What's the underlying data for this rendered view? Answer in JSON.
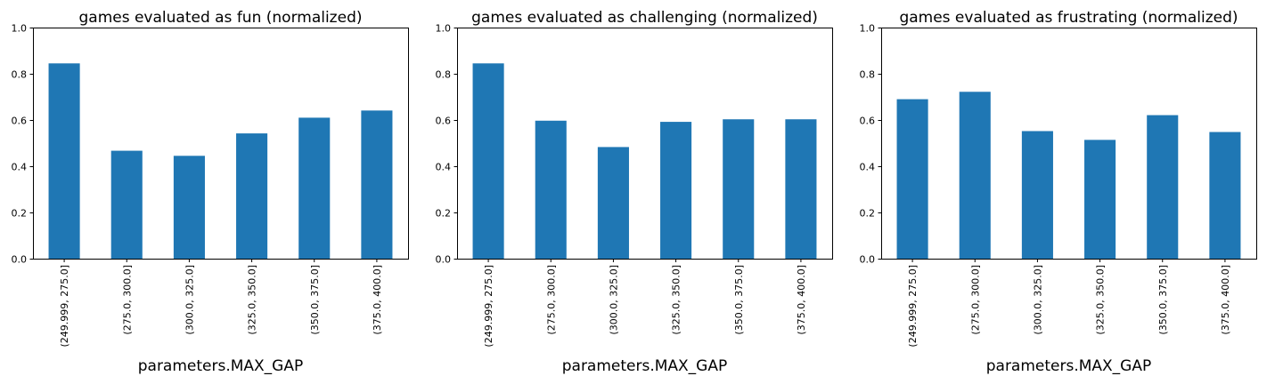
{
  "chart_data": [
    {
      "type": "bar",
      "title": "games evaluated as fun (normalized)",
      "xlabel": "parameters.MAX_GAP",
      "ylabel": "",
      "categories": [
        "(249.999, 275.0]",
        "(275.0, 300.0]",
        "(300.0, 325.0]",
        "(325.0, 350.0]",
        "(350.0, 375.0]",
        "(375.0, 400.0]"
      ],
      "values": [
        0.845,
        0.467,
        0.445,
        0.542,
        0.61,
        0.641
      ],
      "ylim": [
        0,
        1
      ],
      "yticks": [
        "0.0",
        "0.2",
        "0.4",
        "0.6",
        "0.8",
        "1.0"
      ],
      "color": "#1f77b4",
      "grid": false,
      "legend": "none"
    },
    {
      "type": "bar",
      "title": "games evaluated as challenging (normalized)",
      "xlabel": "parameters.MAX_GAP",
      "ylabel": "",
      "categories": [
        "(249.999, 275.0]",
        "(275.0, 300.0]",
        "(300.0, 325.0]",
        "(325.0, 350.0]",
        "(350.0, 375.0]",
        "(375.0, 400.0]"
      ],
      "values": [
        0.845,
        0.597,
        0.483,
        0.592,
        0.603,
        0.603
      ],
      "ylim": [
        0,
        1
      ],
      "yticks": [
        "0.0",
        "0.2",
        "0.4",
        "0.6",
        "0.8",
        "1.0"
      ],
      "color": "#1f77b4",
      "grid": false,
      "legend": "none"
    },
    {
      "type": "bar",
      "title": "games evaluated as frustrating (normalized)",
      "xlabel": "parameters.MAX_GAP",
      "ylabel": "",
      "categories": [
        "(249.999, 275.0]",
        "(275.0, 300.0]",
        "(300.0, 325.0]",
        "(325.0, 350.0]",
        "(350.0, 375.0]",
        "(375.0, 400.0]"
      ],
      "values": [
        0.69,
        0.722,
        0.552,
        0.514,
        0.621,
        0.548
      ],
      "ylim": [
        0,
        1
      ],
      "yticks": [
        "0.0",
        "0.2",
        "0.4",
        "0.6",
        "0.8",
        "1.0"
      ],
      "color": "#1f77b4",
      "grid": false,
      "legend": "none"
    }
  ]
}
